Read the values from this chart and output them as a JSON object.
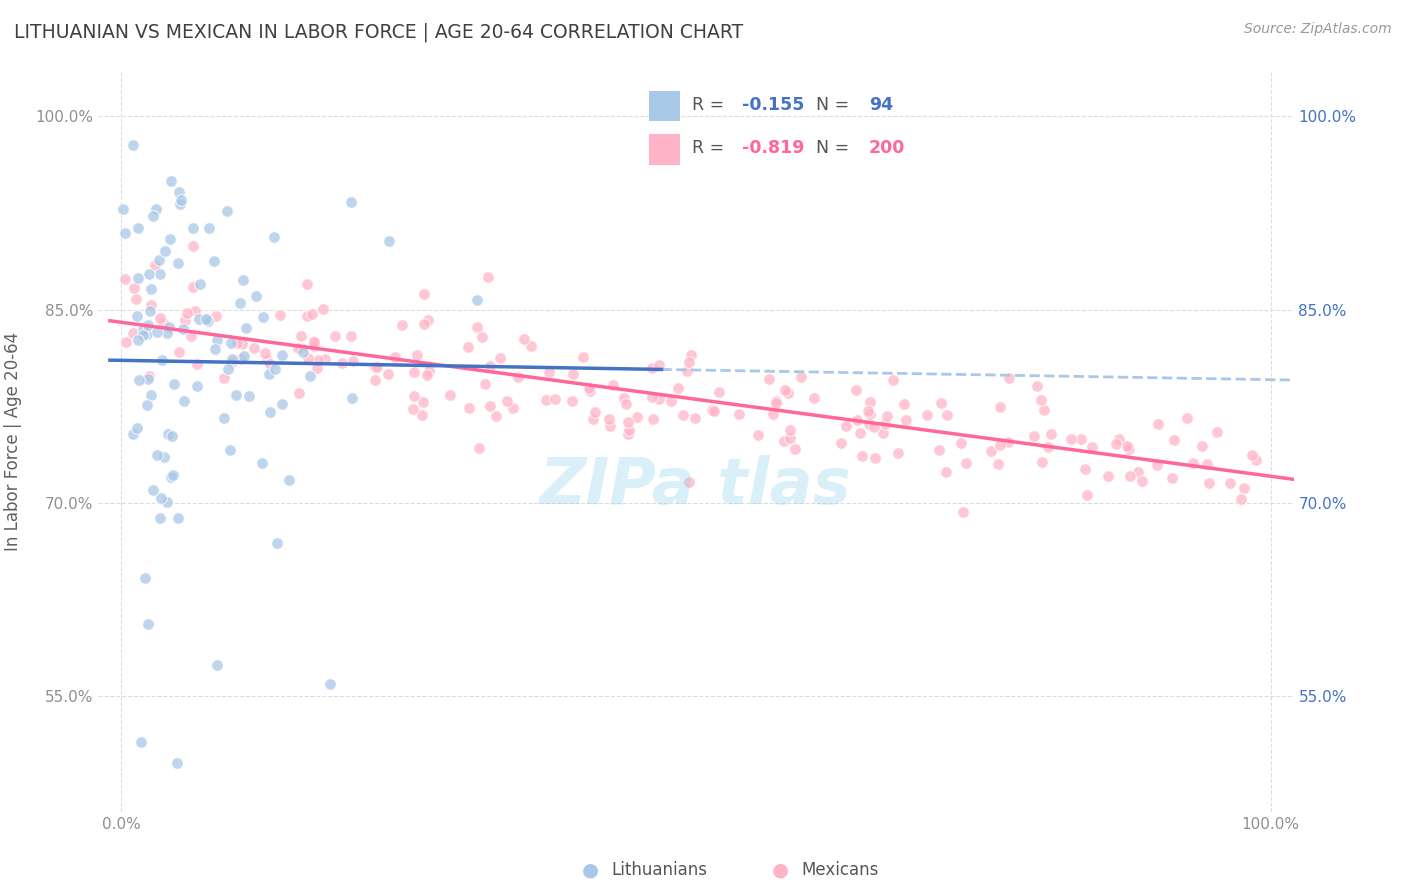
{
  "title": "LITHUANIAN VS MEXICAN IN LABOR FORCE | AGE 20-64 CORRELATION CHART",
  "source_text": "Source: ZipAtlas.com",
  "ylabel": "In Labor Force | Age 20-64",
  "xlim": [
    -0.02,
    1.02
  ],
  "ylim": [
    0.46,
    1.035
  ],
  "yticks": [
    0.55,
    0.7,
    0.85,
    1.0
  ],
  "ytick_labels": [
    "55.0%",
    "70.0%",
    "85.0%",
    "100.0%"
  ],
  "xticks": [
    0.0,
    1.0
  ],
  "xtick_labels": [
    "0.0%",
    "100.0%"
  ],
  "legend_r1_val": "-0.155",
  "legend_n1_val": "94",
  "legend_r2_val": "-0.819",
  "legend_n2_val": "200",
  "color_lithuanian": "#A8C8E8",
  "color_mexican": "#FFB3C6",
  "color_line_lithuanian": "#4472C4",
  "color_line_mexican": "#FF6699",
  "color_dashed": "#A8C8E8",
  "watermark": "ZIPa tlas",
  "title_color": "#404040",
  "source_color": "#999999",
  "axis_label_color": "#606060",
  "left_tick_color": "#909090",
  "right_tick_color": "#4472C4",
  "grid_color": "#DDDDDD",
  "legend_box_color": "#EEEEEE",
  "bottom_legend_labels": [
    "Lithuanians",
    "Mexicans"
  ]
}
